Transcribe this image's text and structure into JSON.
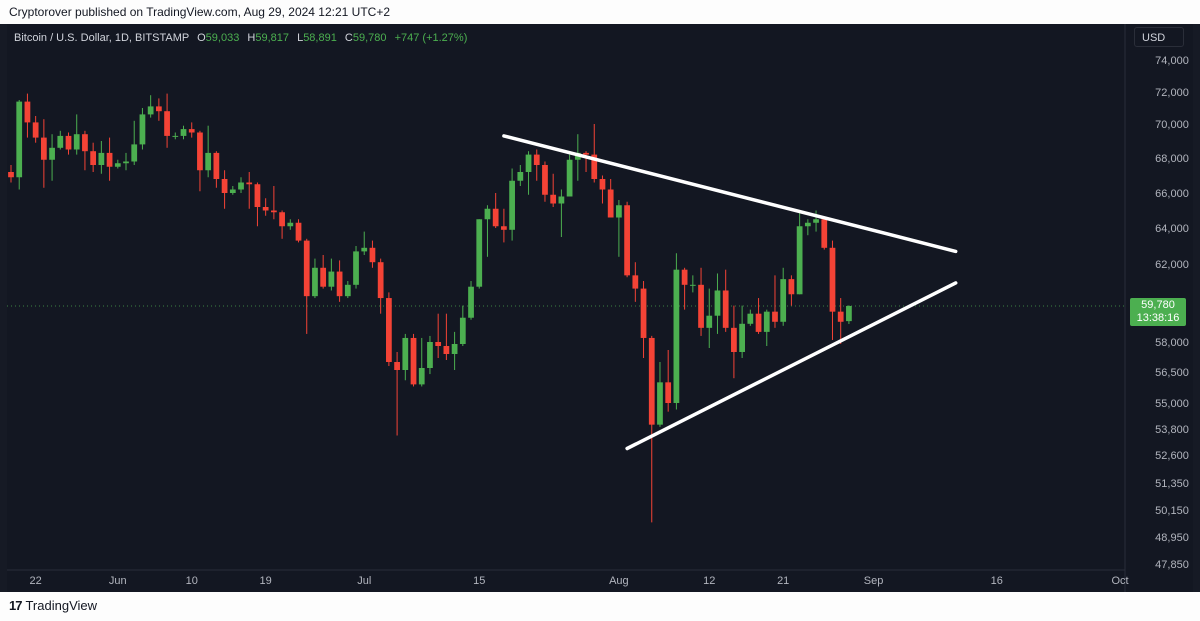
{
  "header": {
    "published_text": "Cryptorover published on TradingView.com, Aug 29, 2024 12:21 UTC+2"
  },
  "symbol": {
    "name": "Bitcoin / U.S. Dollar, 1D, BITSTAMP",
    "o_label": "O",
    "o_value": "59,033",
    "h_label": "H",
    "h_value": "59,817",
    "l_label": "L",
    "l_value": "58,891",
    "c_label": "C",
    "c_value": "59,780",
    "change": "+747 (+1.27%)"
  },
  "currency": "USD",
  "last_price": {
    "price": "59,780",
    "countdown": "13:38:16"
  },
  "footer": {
    "logo_mark": "17",
    "logo_text": "TradingView"
  },
  "colors": {
    "up": "#26a69a",
    "up_display": "#4caf50",
    "down": "#f44336",
    "background": "#131722",
    "trendline": "#ffffff"
  },
  "chart_data": {
    "type": "candlestick",
    "ylim": [
      47850,
      74000
    ],
    "y_ticks": [
      "74,000",
      "72,000",
      "70,000",
      "68,000",
      "66,000",
      "64,000",
      "62,000",
      "59,780",
      "58,000",
      "56,500",
      "55,000",
      "53,800",
      "52,600",
      "51,350",
      "50,150",
      "48,950",
      "47,850"
    ],
    "x_ticks": [
      {
        "label": "22",
        "date": "2024-05-22"
      },
      {
        "label": "Jun",
        "date": "2024-06-01"
      },
      {
        "label": "10",
        "date": "2024-06-10"
      },
      {
        "label": "19",
        "date": "2024-06-19"
      },
      {
        "label": "Jul",
        "date": "2024-07-01"
      },
      {
        "label": "15",
        "date": "2024-07-15"
      },
      {
        "label": "Aug",
        "date": "2024-08-01"
      },
      {
        "label": "12",
        "date": "2024-08-12"
      },
      {
        "label": "21",
        "date": "2024-08-21"
      },
      {
        "label": "Sep",
        "date": "2024-09-01"
      },
      {
        "label": "16",
        "date": "2024-09-16"
      },
      {
        "label": "Oct",
        "date": "2024-10-01"
      }
    ],
    "x_range": [
      "2024-05-19",
      "2024-10-01"
    ],
    "candles": [
      {
        "d": "2024-05-19",
        "o": 67200,
        "h": 67600,
        "l": 66600,
        "c": 66900
      },
      {
        "d": "2024-05-20",
        "o": 66900,
        "h": 71500,
        "l": 66200,
        "c": 71400
      },
      {
        "d": "2024-05-21",
        "o": 71400,
        "h": 71900,
        "l": 69200,
        "c": 70100
      },
      {
        "d": "2024-05-22",
        "o": 70100,
        "h": 70500,
        "l": 68900,
        "c": 69200
      },
      {
        "d": "2024-05-23",
        "o": 69200,
        "h": 70300,
        "l": 66300,
        "c": 67900
      },
      {
        "d": "2024-05-24",
        "o": 67900,
        "h": 69400,
        "l": 66700,
        "c": 68600
      },
      {
        "d": "2024-05-25",
        "o": 68600,
        "h": 69600,
        "l": 68500,
        "c": 69300
      },
      {
        "d": "2024-05-26",
        "o": 69300,
        "h": 69500,
        "l": 68200,
        "c": 68500
      },
      {
        "d": "2024-05-27",
        "o": 68500,
        "h": 70600,
        "l": 68200,
        "c": 69400
      },
      {
        "d": "2024-05-28",
        "o": 69400,
        "h": 69600,
        "l": 67300,
        "c": 68400
      },
      {
        "d": "2024-05-29",
        "o": 68400,
        "h": 68900,
        "l": 67200,
        "c": 67600
      },
      {
        "d": "2024-05-30",
        "o": 67600,
        "h": 69000,
        "l": 67100,
        "c": 68300
      },
      {
        "d": "2024-05-31",
        "o": 68300,
        "h": 69200,
        "l": 66700,
        "c": 67500
      },
      {
        "d": "2024-06-01",
        "o": 67500,
        "h": 67900,
        "l": 67400,
        "c": 67700
      },
      {
        "d": "2024-06-02",
        "o": 67700,
        "h": 68300,
        "l": 67300,
        "c": 67800
      },
      {
        "d": "2024-06-03",
        "o": 67800,
        "h": 70200,
        "l": 67600,
        "c": 68800
      },
      {
        "d": "2024-06-04",
        "o": 68800,
        "h": 71000,
        "l": 68500,
        "c": 70600
      },
      {
        "d": "2024-06-05",
        "o": 70600,
        "h": 71800,
        "l": 70400,
        "c": 71100
      },
      {
        "d": "2024-06-06",
        "o": 71100,
        "h": 71600,
        "l": 70200,
        "c": 70800
      },
      {
        "d": "2024-06-07",
        "o": 70800,
        "h": 71900,
        "l": 68600,
        "c": 69300
      },
      {
        "d": "2024-06-08",
        "o": 69300,
        "h": 69500,
        "l": 69100,
        "c": 69300
      },
      {
        "d": "2024-06-09",
        "o": 69300,
        "h": 69900,
        "l": 69100,
        "c": 69700
      },
      {
        "d": "2024-06-10",
        "o": 69700,
        "h": 70100,
        "l": 69200,
        "c": 69500
      },
      {
        "d": "2024-06-11",
        "o": 69500,
        "h": 69600,
        "l": 66100,
        "c": 67300
      },
      {
        "d": "2024-06-12",
        "o": 67300,
        "h": 69900,
        "l": 66900,
        "c": 68300
      },
      {
        "d": "2024-06-13",
        "o": 68300,
        "h": 68400,
        "l": 66300,
        "c": 66800
      },
      {
        "d": "2024-06-14",
        "o": 66800,
        "h": 67300,
        "l": 65100,
        "c": 66000
      },
      {
        "d": "2024-06-15",
        "o": 66000,
        "h": 66400,
        "l": 65900,
        "c": 66200
      },
      {
        "d": "2024-06-16",
        "o": 66200,
        "h": 66900,
        "l": 66000,
        "c": 66600
      },
      {
        "d": "2024-06-17",
        "o": 66600,
        "h": 67200,
        "l": 65100,
        "c": 66500
      },
      {
        "d": "2024-06-18",
        "o": 66500,
        "h": 66600,
        "l": 64100,
        "c": 65200
      },
      {
        "d": "2024-06-19",
        "o": 65200,
        "h": 65700,
        "l": 64700,
        "c": 65000
      },
      {
        "d": "2024-06-20",
        "o": 65000,
        "h": 66400,
        "l": 64500,
        "c": 64900
      },
      {
        "d": "2024-06-21",
        "o": 64900,
        "h": 65000,
        "l": 63400,
        "c": 64100
      },
      {
        "d": "2024-06-22",
        "o": 64100,
        "h": 64500,
        "l": 63900,
        "c": 64300
      },
      {
        "d": "2024-06-23",
        "o": 64300,
        "h": 64500,
        "l": 63200,
        "c": 63300
      },
      {
        "d": "2024-06-24",
        "o": 63300,
        "h": 63400,
        "l": 58400,
        "c": 60300
      },
      {
        "d": "2024-06-25",
        "o": 60300,
        "h": 62300,
        "l": 60200,
        "c": 61800
      },
      {
        "d": "2024-06-26",
        "o": 61800,
        "h": 62500,
        "l": 60700,
        "c": 60800
      },
      {
        "d": "2024-06-27",
        "o": 60800,
        "h": 62300,
        "l": 60600,
        "c": 61600
      },
      {
        "d": "2024-06-28",
        "o": 61600,
        "h": 62200,
        "l": 60000,
        "c": 60300
      },
      {
        "d": "2024-06-29",
        "o": 60300,
        "h": 61100,
        "l": 60200,
        "c": 60900
      },
      {
        "d": "2024-06-30",
        "o": 60900,
        "h": 63000,
        "l": 60700,
        "c": 62700
      },
      {
        "d": "2024-07-01",
        "o": 62700,
        "h": 63800,
        "l": 62500,
        "c": 62900
      },
      {
        "d": "2024-07-02",
        "o": 62900,
        "h": 63300,
        "l": 61800,
        "c": 62100
      },
      {
        "d": "2024-07-03",
        "o": 62100,
        "h": 62300,
        "l": 59400,
        "c": 60200
      },
      {
        "d": "2024-07-04",
        "o": 60200,
        "h": 60500,
        "l": 56800,
        "c": 57000
      },
      {
        "d": "2024-07-05",
        "o": 57000,
        "h": 57500,
        "l": 53500,
        "c": 56600
      },
      {
        "d": "2024-07-06",
        "o": 56600,
        "h": 58400,
        "l": 56100,
        "c": 58200
      },
      {
        "d": "2024-07-07",
        "o": 58200,
        "h": 58400,
        "l": 55800,
        "c": 55900
      },
      {
        "d": "2024-07-08",
        "o": 55900,
        "h": 58200,
        "l": 55800,
        "c": 56700
      },
      {
        "d": "2024-07-09",
        "o": 56700,
        "h": 58300,
        "l": 56400,
        "c": 58000
      },
      {
        "d": "2024-07-10",
        "o": 58000,
        "h": 59400,
        "l": 57200,
        "c": 57800
      },
      {
        "d": "2024-07-11",
        "o": 57800,
        "h": 59400,
        "l": 57100,
        "c": 57400
      },
      {
        "d": "2024-07-12",
        "o": 57400,
        "h": 58500,
        "l": 56600,
        "c": 57900
      },
      {
        "d": "2024-07-13",
        "o": 57900,
        "h": 59800,
        "l": 57800,
        "c": 59200
      },
      {
        "d": "2024-07-14",
        "o": 59200,
        "h": 61100,
        "l": 59100,
        "c": 60800
      },
      {
        "d": "2024-07-15",
        "o": 60800,
        "h": 64500,
        "l": 60700,
        "c": 64500
      },
      {
        "d": "2024-07-16",
        "o": 64500,
        "h": 65300,
        "l": 62400,
        "c": 65100
      },
      {
        "d": "2024-07-17",
        "o": 65100,
        "h": 66000,
        "l": 64000,
        "c": 64100
      },
      {
        "d": "2024-07-18",
        "o": 64100,
        "h": 65100,
        "l": 63200,
        "c": 63900
      },
      {
        "d": "2024-07-19",
        "o": 63900,
        "h": 67400,
        "l": 63300,
        "c": 66700
      },
      {
        "d": "2024-07-20",
        "o": 66700,
        "h": 67600,
        "l": 66400,
        "c": 67200
      },
      {
        "d": "2024-07-21",
        "o": 67200,
        "h": 68400,
        "l": 65900,
        "c": 68200
      },
      {
        "d": "2024-07-22",
        "o": 68200,
        "h": 68500,
        "l": 66700,
        "c": 67600
      },
      {
        "d": "2024-07-23",
        "o": 67600,
        "h": 67800,
        "l": 65500,
        "c": 65900
      },
      {
        "d": "2024-07-24",
        "o": 65900,
        "h": 67100,
        "l": 65200,
        "c": 65400
      },
      {
        "d": "2024-07-25",
        "o": 65400,
        "h": 66200,
        "l": 63500,
        "c": 65800
      },
      {
        "d": "2024-07-26",
        "o": 65800,
        "h": 68200,
        "l": 65800,
        "c": 67900
      },
      {
        "d": "2024-07-27",
        "o": 67900,
        "h": 69400,
        "l": 66700,
        "c": 68300
      },
      {
        "d": "2024-07-28",
        "o": 68300,
        "h": 68400,
        "l": 67200,
        "c": 68200
      },
      {
        "d": "2024-07-29",
        "o": 68200,
        "h": 70000,
        "l": 66600,
        "c": 66800
      },
      {
        "d": "2024-07-30",
        "o": 66800,
        "h": 67000,
        "l": 65400,
        "c": 66200
      },
      {
        "d": "2024-07-31",
        "o": 66200,
        "h": 66800,
        "l": 64600,
        "c": 64600
      },
      {
        "d": "2024-08-01",
        "o": 64600,
        "h": 65600,
        "l": 62400,
        "c": 65300
      },
      {
        "d": "2024-08-02",
        "o": 65300,
        "h": 65500,
        "l": 61300,
        "c": 61400
      },
      {
        "d": "2024-08-03",
        "o": 61400,
        "h": 62100,
        "l": 60000,
        "c": 60700
      },
      {
        "d": "2024-08-04",
        "o": 60700,
        "h": 61100,
        "l": 57200,
        "c": 58200
      },
      {
        "d": "2024-08-05",
        "o": 58200,
        "h": 58300,
        "l": 49600,
        "c": 54000
      },
      {
        "d": "2024-08-06",
        "o": 54000,
        "h": 57000,
        "l": 53900,
        "c": 56000
      },
      {
        "d": "2024-08-07",
        "o": 56000,
        "h": 57600,
        "l": 54600,
        "c": 55000
      },
      {
        "d": "2024-08-08",
        "o": 55000,
        "h": 62600,
        "l": 54700,
        "c": 61700
      },
      {
        "d": "2024-08-09",
        "o": 61700,
        "h": 61800,
        "l": 59600,
        "c": 60900
      },
      {
        "d": "2024-08-10",
        "o": 60900,
        "h": 61400,
        "l": 60500,
        "c": 60900
      },
      {
        "d": "2024-08-11",
        "o": 60900,
        "h": 61800,
        "l": 58300,
        "c": 58700
      },
      {
        "d": "2024-08-12",
        "o": 58700,
        "h": 60700,
        "l": 57700,
        "c": 59300
      },
      {
        "d": "2024-08-13",
        "o": 59300,
        "h": 61500,
        "l": 58400,
        "c": 60600
      },
      {
        "d": "2024-08-14",
        "o": 60600,
        "h": 61700,
        "l": 58500,
        "c": 58700
      },
      {
        "d": "2024-08-15",
        "o": 58700,
        "h": 59800,
        "l": 56200,
        "c": 57500
      },
      {
        "d": "2024-08-16",
        "o": 57500,
        "h": 59800,
        "l": 57200,
        "c": 58900
      },
      {
        "d": "2024-08-17",
        "o": 58900,
        "h": 59600,
        "l": 58800,
        "c": 59400
      },
      {
        "d": "2024-08-18",
        "o": 59400,
        "h": 60200,
        "l": 58400,
        "c": 58500
      },
      {
        "d": "2024-08-19",
        "o": 58500,
        "h": 59600,
        "l": 57800,
        "c": 59500
      },
      {
        "d": "2024-08-20",
        "o": 59500,
        "h": 61400,
        "l": 58700,
        "c": 59000
      },
      {
        "d": "2024-08-21",
        "o": 59000,
        "h": 61800,
        "l": 58800,
        "c": 61200
      },
      {
        "d": "2024-08-22",
        "o": 61200,
        "h": 61400,
        "l": 59800,
        "c": 60400
      },
      {
        "d": "2024-08-23",
        "o": 60400,
        "h": 64900,
        "l": 60400,
        "c": 64100
      },
      {
        "d": "2024-08-24",
        "o": 64100,
        "h": 64500,
        "l": 63600,
        "c": 64300
      },
      {
        "d": "2024-08-25",
        "o": 64300,
        "h": 65000,
        "l": 63800,
        "c": 64500
      },
      {
        "d": "2024-08-26",
        "o": 64500,
        "h": 64500,
        "l": 62800,
        "c": 62900
      },
      {
        "d": "2024-08-27",
        "o": 62900,
        "h": 63300,
        "l": 58100,
        "c": 59500
      },
      {
        "d": "2024-08-28",
        "o": 59500,
        "h": 60200,
        "l": 57900,
        "c": 59000
      },
      {
        "d": "2024-08-29",
        "o": 59033,
        "h": 59817,
        "l": 58891,
        "c": 59780
      }
    ],
    "trendlines": [
      {
        "name": "descending-resistance",
        "from": {
          "d": "2024-07-18",
          "v": 69300
        },
        "to": {
          "d": "2024-09-11",
          "v": 62700
        }
      },
      {
        "name": "ascending-support",
        "from": {
          "d": "2024-08-02",
          "v": 52900
        },
        "to": {
          "d": "2024-09-11",
          "v": 61000
        }
      }
    ]
  }
}
